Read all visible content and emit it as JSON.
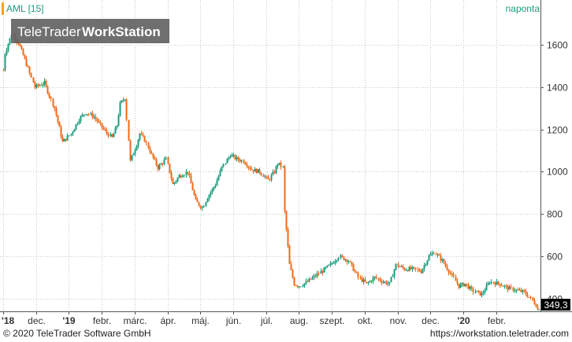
{
  "header": {
    "symbol_label": "AML [15]",
    "period_label": "naponta"
  },
  "watermark": {
    "brand_light": "TeleTrader",
    "brand_bold": "WorkStation"
  },
  "footer": {
    "copyright": "© 2020 TeleTrader Software GmbH",
    "url": "https://workstation.teletrader.com"
  },
  "colors": {
    "up": "#1a9c7d",
    "down": "#ef6a1a",
    "grid": "#c8c8c8",
    "axis": "#555555",
    "accent": "#f7a21b",
    "last_price_bg": "#000000"
  },
  "chart_data": {
    "type": "candlestick",
    "series_name": "AML",
    "interval": "naponta",
    "ylim": [
      340,
      1730
    ],
    "y_ticks": [
      400,
      600,
      800,
      1000,
      1200,
      1400,
      1600
    ],
    "y_tick_labels": [
      "400",
      "600",
      "800",
      "1000",
      "1200",
      "1400",
      "1600"
    ],
    "x_ticks": [
      "'18",
      "dec.",
      "'19",
      "febr.",
      "márc.",
      "ápr.",
      "máj.",
      "jún.",
      "júl.",
      "aug.",
      "szept.",
      "okt.",
      "nov.",
      "dec.",
      "'20",
      "febr."
    ],
    "x_tick_positions": [
      0.5,
      1.5,
      2.5,
      3.5,
      4.5,
      5.5,
      6.5,
      7.5,
      8.5,
      9.5,
      10.5,
      11.5,
      12.5,
      13.5,
      14.5,
      15.5
    ],
    "x_range": [
      0.5,
      16.85
    ],
    "last_price": "349,3",
    "key_points": {
      "x": [
        0.5,
        0.55,
        0.75,
        0.95,
        1.15,
        1.45,
        1.75,
        2.05,
        2.3,
        2.55,
        2.8,
        3.0,
        3.25,
        3.55,
        3.8,
        3.95,
        4.05,
        4.2,
        4.35,
        4.55,
        4.65,
        4.8,
        5.0,
        5.2,
        5.45,
        5.65,
        5.85,
        6.1,
        6.35,
        6.55,
        6.7,
        6.95,
        7.15,
        7.4,
        7.6,
        7.8,
        8.05,
        8.3,
        8.55,
        8.75,
        8.85,
        9.0,
        9.05,
        9.2,
        9.35,
        9.5,
        9.75,
        10.1,
        10.45,
        10.7,
        11.0,
        11.3,
        11.55,
        11.8,
        12.05,
        12.25,
        12.45,
        12.7,
        12.95,
        13.2,
        13.45,
        13.6,
        13.85,
        14.1,
        14.35,
        14.55,
        14.75,
        15.05,
        15.3,
        15.6,
        15.85,
        16.1,
        16.35,
        16.55,
        16.7,
        16.8
      ],
      "y": [
        1480,
        1560,
        1650,
        1610,
        1530,
        1400,
        1420,
        1300,
        1140,
        1180,
        1250,
        1280,
        1260,
        1200,
        1160,
        1220,
        1320,
        1350,
        1050,
        1130,
        1180,
        1150,
        1080,
        1020,
        1060,
        940,
        980,
        1000,
        860,
        830,
        880,
        940,
        1020,
        1080,
        1060,
        1050,
        1010,
        1000,
        960,
        1000,
        1040,
        1020,
        810,
        560,
        470,
        460,
        480,
        520,
        560,
        600,
        580,
        500,
        470,
        500,
        480,
        470,
        560,
        540,
        540,
        530,
        600,
        620,
        580,
        520,
        460,
        470,
        440,
        420,
        480,
        470,
        450,
        440,
        430,
        400,
        370,
        349
      ]
    }
  }
}
